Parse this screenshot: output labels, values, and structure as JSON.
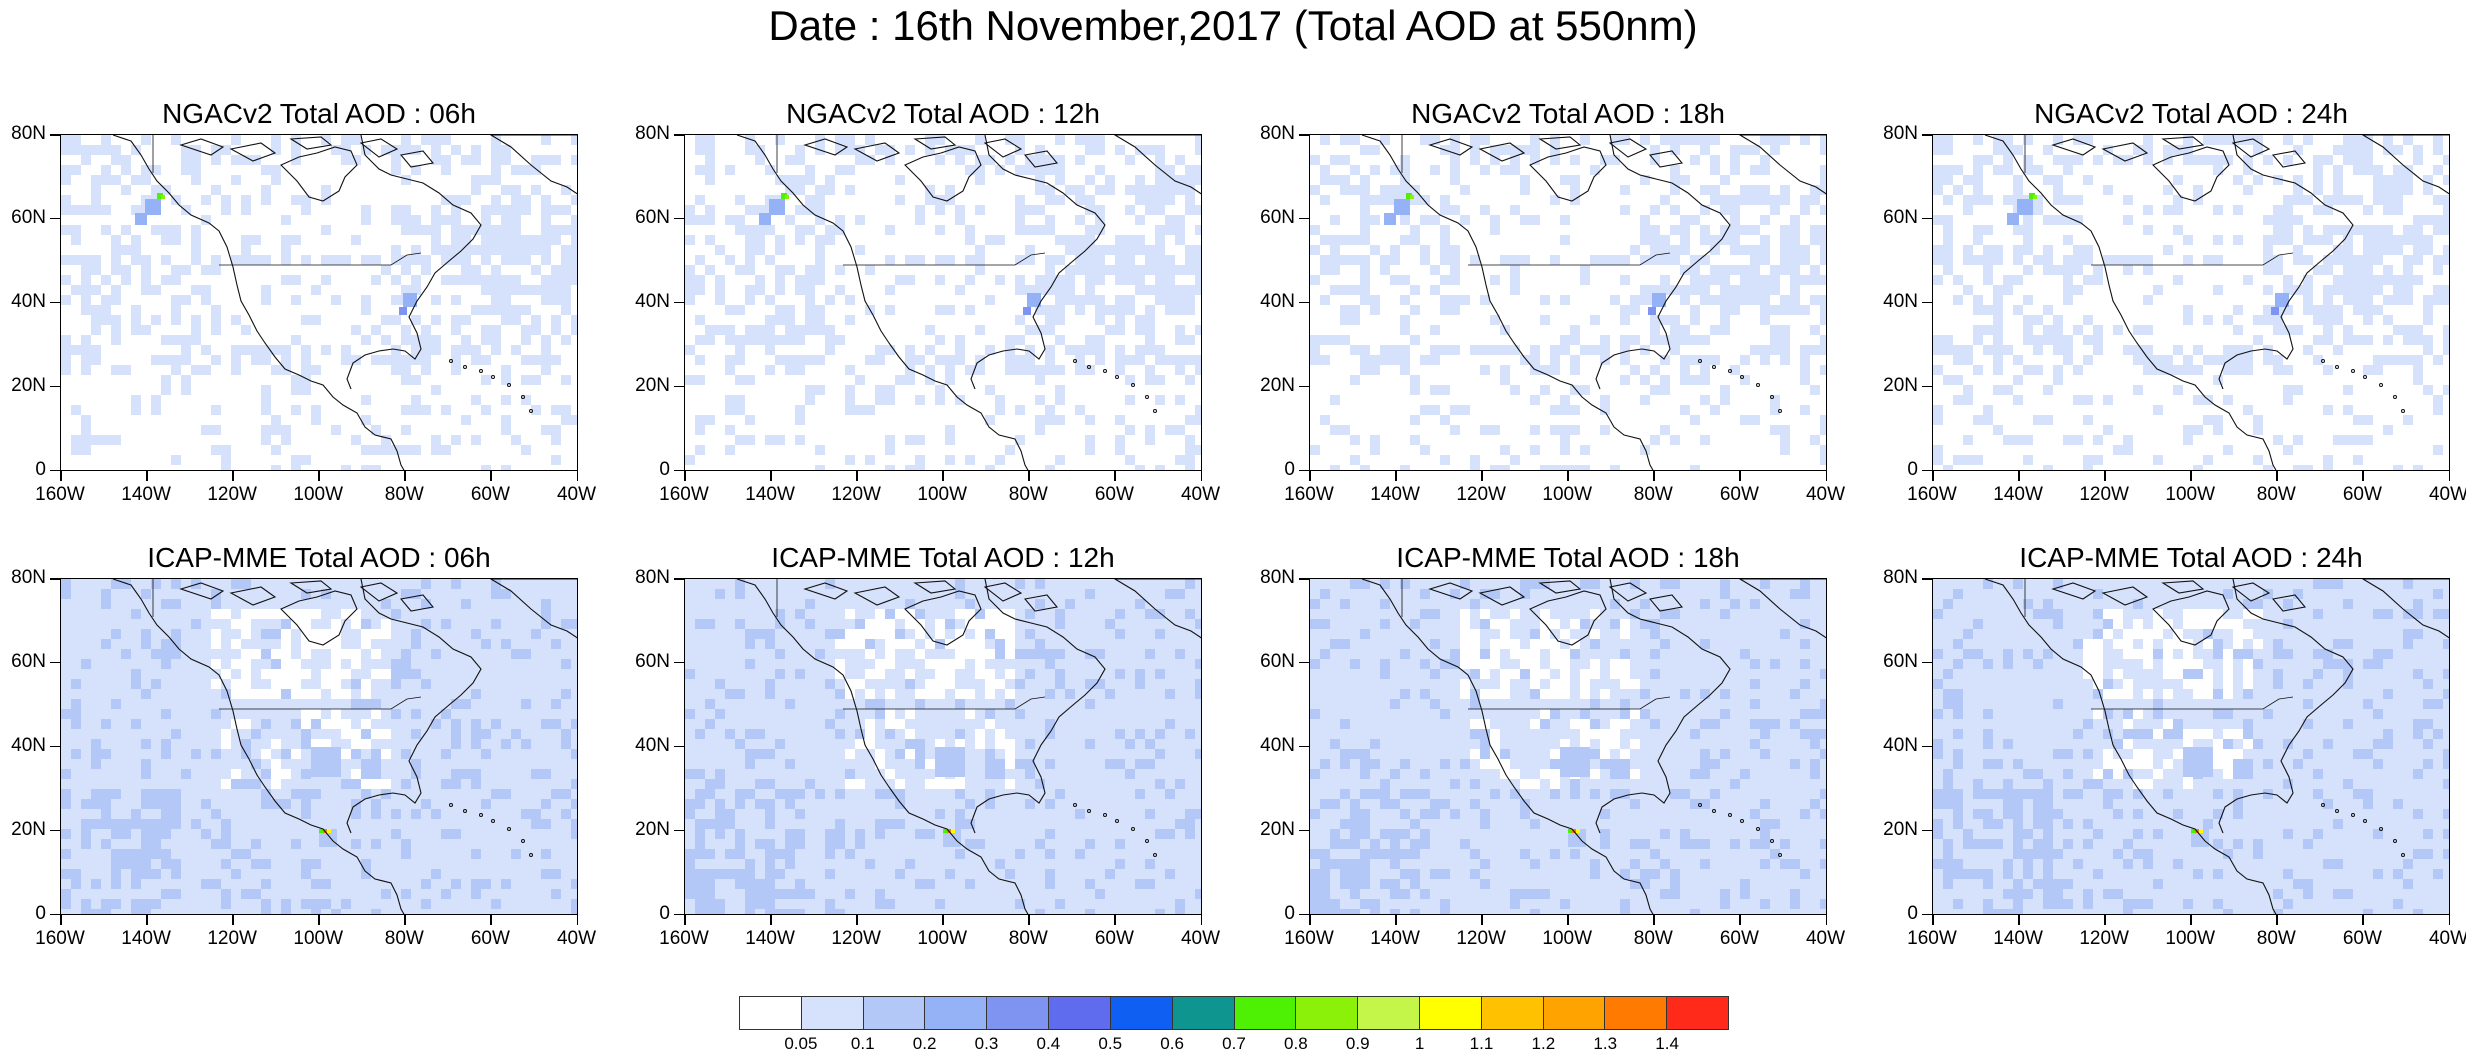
{
  "title": "Date : 16th November,2017 (Total AOD at 550nm)",
  "axis_labels": {
    "lat": [
      "80N",
      "60N",
      "40N",
      "20N",
      "0"
    ],
    "lon": [
      "160W",
      "140W",
      "120W",
      "100W",
      "80W",
      "60W",
      "40W"
    ]
  },
  "panels": [
    {
      "title": "NGACv2 Total AOD : 06h",
      "model": "NGACv2",
      "lead": "06h"
    },
    {
      "title": "NGACv2 Total AOD : 12h",
      "model": "NGACv2",
      "lead": "12h"
    },
    {
      "title": "NGACv2 Total AOD : 18h",
      "model": "NGACv2",
      "lead": "18h"
    },
    {
      "title": "NGACv2 Total AOD : 24h",
      "model": "NGACv2",
      "lead": "24h"
    },
    {
      "title": "ICAP-MME Total AOD : 06h",
      "model": "ICAP-MME",
      "lead": "06h"
    },
    {
      "title": "ICAP-MME Total AOD : 12h",
      "model": "ICAP-MME",
      "lead": "12h"
    },
    {
      "title": "ICAP-MME Total AOD : 18h",
      "model": "ICAP-MME",
      "lead": "18h"
    },
    {
      "title": "ICAP-MME Total AOD : 24h",
      "model": "ICAP-MME",
      "lead": "24h"
    }
  ],
  "colorbar": {
    "labels": [
      "0.05",
      "0.1",
      "0.2",
      "0.3",
      "0.4",
      "0.5",
      "0.6",
      "0.7",
      "0.8",
      "0.9",
      "1",
      "1.1",
      "1.2",
      "1.3",
      "1.4"
    ],
    "colors": [
      "#ffffff",
      "#d6e2fb",
      "#b4c8f8",
      "#95b2f6",
      "#7f93f1",
      "#5f6cee",
      "#0f5ff2",
      "#0e958f",
      "#4ef103",
      "#8cf108",
      "#c4f64a",
      "#ffff00",
      "#ffc100",
      "#ffa300",
      "#ff7a00",
      "#ff2a1a"
    ]
  }
}
